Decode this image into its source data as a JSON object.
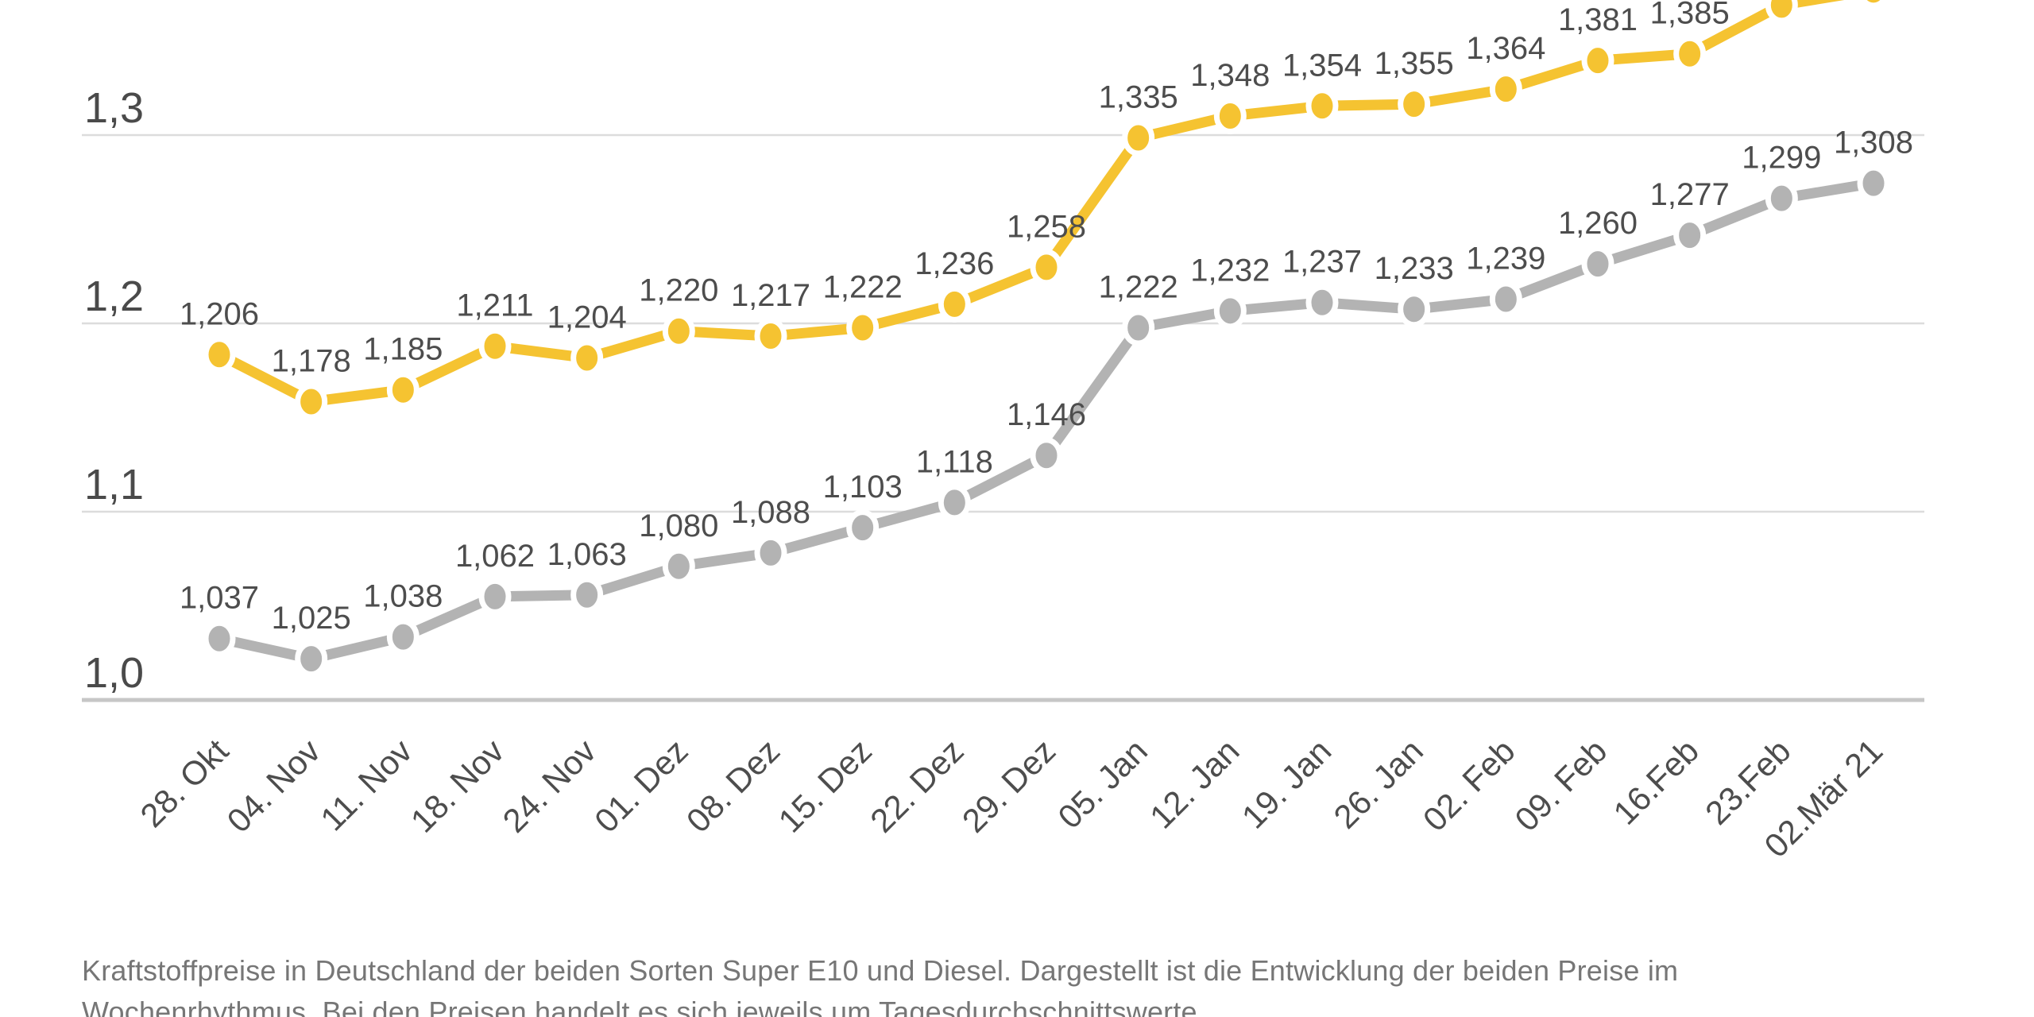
{
  "chart_data": {
    "type": "line",
    "title": "",
    "x_labels": [
      "28. Okt",
      "04. Nov",
      "11. Nov",
      "18. Nov",
      "24. Nov",
      "01. Dez",
      "08. Dez",
      "15. Dez",
      "22. Dez",
      "29. Dez",
      "05. Jan",
      "12. Jan",
      "19. Jan",
      "26. Jan",
      "02. Feb",
      "09. Feb",
      "16.Feb",
      "23.Feb",
      "02.Mär 21"
    ],
    "series": [
      {
        "name": "Super E10",
        "color": "#f5c331",
        "values": [
          1.206,
          1.178,
          1.185,
          1.211,
          1.204,
          1.22,
          1.217,
          1.222,
          1.236,
          1.258,
          1.335,
          1.348,
          1.354,
          1.355,
          1.364,
          1.381,
          1.385,
          1.414,
          1.423
        ],
        "labels": [
          "1,206",
          "1,178",
          "1,185",
          "1,211",
          "1,204",
          "1,220",
          "1,217",
          "1,222",
          "1,236",
          "1,258",
          "1,335",
          "1,348",
          "1,354",
          "1,355",
          "1,364",
          "1,381",
          "1,385",
          null,
          null
        ]
      },
      {
        "name": "Diesel",
        "color": "#b3b3b3",
        "values": [
          1.037,
          1.025,
          1.038,
          1.062,
          1.063,
          1.08,
          1.088,
          1.103,
          1.118,
          1.146,
          1.222,
          1.232,
          1.237,
          1.233,
          1.239,
          1.26,
          1.277,
          1.299,
          1.308
        ],
        "labels": [
          "1,037",
          "1,025",
          "1,038",
          "1,062",
          "1,063",
          "1,080",
          "1,088",
          "1,103",
          "1,118",
          "1,146",
          "1,222",
          "1,232",
          "1,237",
          "1,233",
          "1,239",
          "1,260",
          "1,277",
          "1,299",
          "1,308"
        ]
      }
    ],
    "y_axis": {
      "tick_labels": [
        "1,0",
        "1,1",
        "1,2",
        "1,3"
      ],
      "tick_values": [
        1.0,
        1.1,
        1.2,
        1.3
      ]
    },
    "grid": true,
    "legend": "none",
    "label_text_color": "#4d4d4d",
    "gridline_color": "#dcdcdc",
    "axisline_color": "#c6c6c6"
  },
  "caption": {
    "line1": "Kraftstoffpreise in Deutschland der beiden Sorten Super E10 und Diesel. Dargestellt ist die Entwicklung der beiden Preise im",
    "line2": "Wochenrhythmus. Bei den Preisen handelt es sich jeweils um Tagesdurchschnittswerte"
  }
}
